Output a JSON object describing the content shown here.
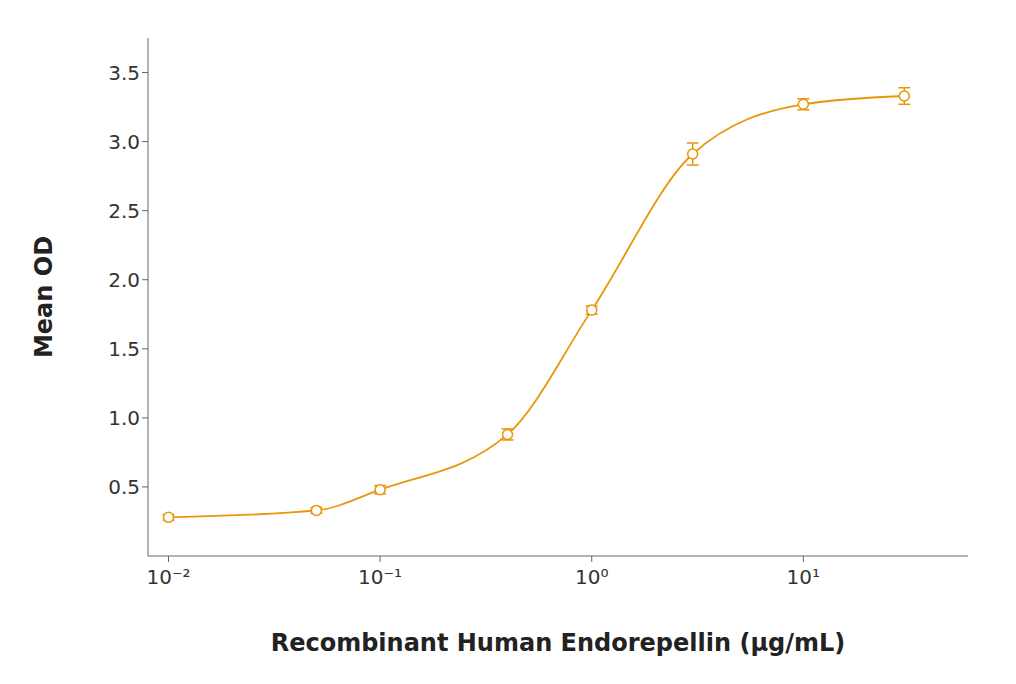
{
  "chart_data": {
    "type": "line",
    "xlabel": "Recombinant Human Endorepellin (μg/mL)",
    "ylabel": "Mean OD",
    "x": [
      0.01,
      0.05,
      0.1,
      0.4,
      1.0,
      3.0,
      10.0,
      30.0
    ],
    "values": [
      0.28,
      0.33,
      0.48,
      0.88,
      1.78,
      2.91,
      3.27,
      3.33
    ],
    "errors": [
      0.02,
      0.02,
      0.03,
      0.04,
      0.03,
      0.08,
      0.04,
      0.06
    ],
    "color": "#E8960A",
    "marker": "circle",
    "line_style": "solid",
    "log": "x",
    "grid": false,
    "xlim": [
      0.008,
      60
    ],
    "ylim": [
      0.0,
      3.75
    ],
    "xticks": [
      {
        "value": 0.01,
        "label": "10⁻²"
      },
      {
        "value": 0.1,
        "label": "10⁻¹"
      },
      {
        "value": 1,
        "label": "10⁰"
      },
      {
        "value": 10,
        "label": "10¹"
      }
    ],
    "yticks": [
      0.5,
      {
        "value": 1.0,
        "label": "1.0"
      },
      1.5,
      {
        "value": 2.0,
        "label": "2.0"
      },
      2.5,
      {
        "value": 3.0,
        "label": "3.0"
      },
      3.5
    ]
  }
}
